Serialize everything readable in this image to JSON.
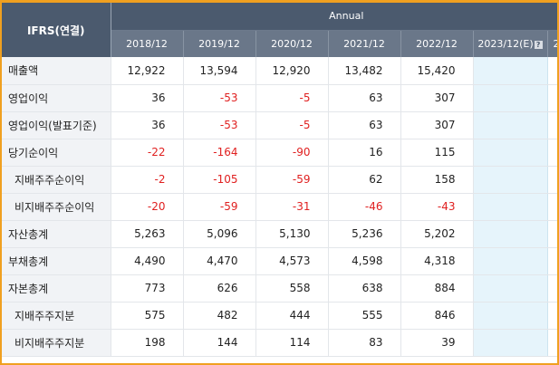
{
  "table": {
    "corner_label": "IFRS(연결)",
    "period_group": "Annual",
    "columns": [
      "2018/12",
      "2019/12",
      "2020/12",
      "2021/12",
      "2022/12"
    ],
    "estimate_column": "2023/12(E)",
    "estimate_help_icon": "question-icon",
    "estimate_help_glyph": "?",
    "overflow_column_fragment": "2",
    "negative_color": "#e02020",
    "estimate_bg_color": "#e6f4fb",
    "header_bg_color": "#4b5a6e",
    "rows": [
      {
        "label": "매출액",
        "values": [
          "12,922",
          "13,594",
          "12,920",
          "13,482",
          "15,420"
        ]
      },
      {
        "label": "영업이익",
        "values": [
          "36",
          "-53",
          "-5",
          "63",
          "307"
        ]
      },
      {
        "label": "영업이익(발표기준)",
        "values": [
          "36",
          "-53",
          "-5",
          "63",
          "307"
        ]
      },
      {
        "label": "당기순이익",
        "values": [
          "-22",
          "-164",
          "-90",
          "16",
          "115"
        ]
      },
      {
        "label": "지배주주순이익",
        "values": [
          "-2",
          "-105",
          "-59",
          "62",
          "158"
        ],
        "sub": true
      },
      {
        "label": "비지배주주순이익",
        "values": [
          "-20",
          "-59",
          "-31",
          "-46",
          "-43"
        ],
        "sub": true
      },
      {
        "label": "자산총계",
        "values": [
          "5,263",
          "5,096",
          "5,130",
          "5,236",
          "5,202"
        ]
      },
      {
        "label": "부채총계",
        "values": [
          "4,490",
          "4,470",
          "4,573",
          "4,598",
          "4,318"
        ]
      },
      {
        "label": "자본총계",
        "values": [
          "773",
          "626",
          "558",
          "638",
          "884"
        ]
      },
      {
        "label": "지배주주지분",
        "values": [
          "575",
          "482",
          "444",
          "555",
          "846"
        ],
        "sub": true
      },
      {
        "label": "비지배주주지분",
        "values": [
          "198",
          "144",
          "114",
          "83",
          "39"
        ],
        "sub": true
      }
    ]
  }
}
